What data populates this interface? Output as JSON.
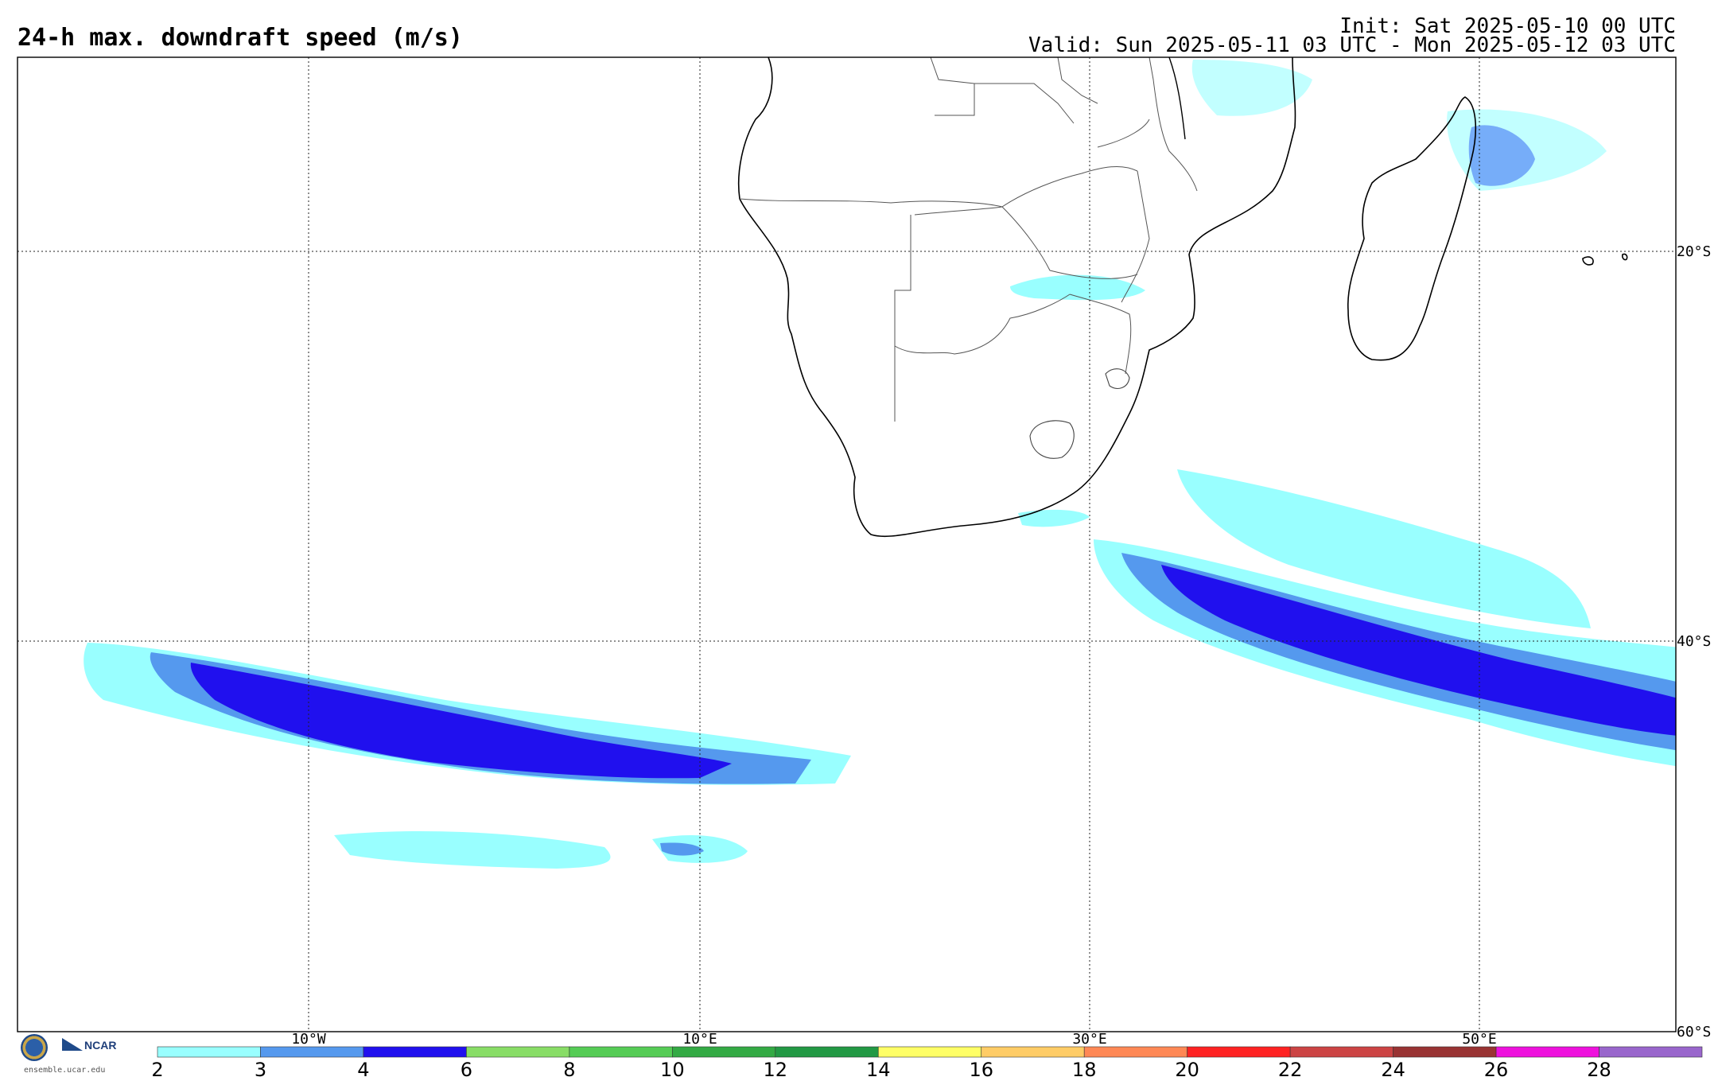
{
  "header": {
    "title": "24-h max. downdraft speed (m/s)",
    "init": "Init: Sat 2025-05-10 00 UTC",
    "valid": "Valid: Sun 2025-05-11 03 UTC - Mon 2025-05-12 03 UTC"
  },
  "map": {
    "region": "Southern Africa / South Atlantic / South-west Indian Ocean",
    "lon_labels": [
      "10°W",
      "10°E",
      "30°E",
      "50°E"
    ],
    "lat_labels": [
      "20°S",
      "40°S",
      "60°S"
    ],
    "gridlines": "dotted"
  },
  "colorbar": {
    "unit": "m/s",
    "ticks": [
      "2",
      "3",
      "4",
      "6",
      "8",
      "10",
      "12",
      "14",
      "16",
      "18",
      "20",
      "22",
      "24",
      "26",
      "28"
    ],
    "colors": [
      "#99ffff",
      "#5599ee",
      "#2010ee",
      "#88dd66",
      "#55cc55",
      "#33aa44",
      "#229944",
      "#ffff66",
      "#ffcc66",
      "#ff8855",
      "#ff2222",
      "#cc4444",
      "#993333",
      "#ee11dd",
      "#9966cc"
    ]
  },
  "logos": {
    "nsf": "NSF",
    "ncar": "NCAR",
    "url": "ensemble.ucar.edu"
  }
}
